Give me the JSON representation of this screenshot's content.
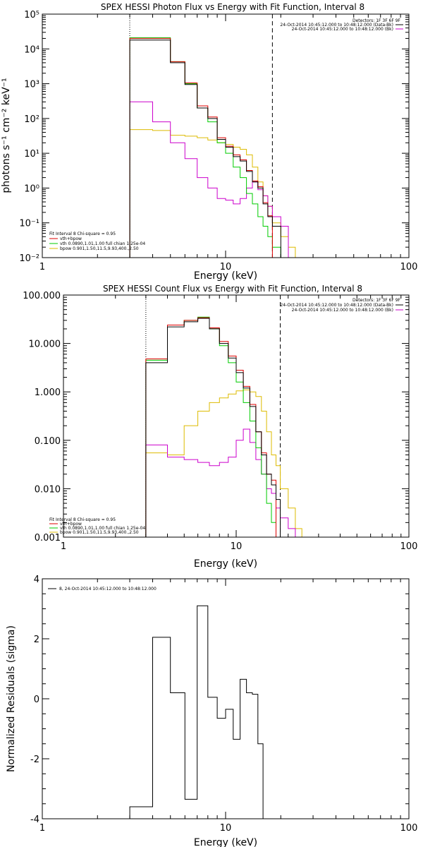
{
  "colors": {
    "data": "#000000",
    "total_fit": "#dd0000",
    "vth": "#00cc00",
    "bpow": "#ddbb00",
    "background": "#cc00cc"
  },
  "chart_data": [
    {
      "type": "line",
      "title": "SPEX HESSI Photon Flux vs Energy with Fit Function, Interval 8",
      "xlabel": "Energy (keV)",
      "ylabel": "photons s⁻¹ cm⁻² keV⁻¹",
      "xscale": "log",
      "yscale": "log",
      "xlim": [
        1,
        100
      ],
      "ylim": [
        0.01,
        100000
      ],
      "xticks": [
        1,
        10,
        100
      ],
      "xtick_labels": [
        "1",
        "10",
        "100"
      ],
      "yticks": [
        0.01,
        0.1,
        1,
        10,
        100,
        1000,
        10000,
        100000
      ],
      "ytick_labels": [
        "10⁻²",
        "10⁻¹",
        "10⁰",
        "10¹",
        "10²",
        "10³",
        "10⁴",
        "10⁵"
      ],
      "vlines": [
        {
          "x": 3,
          "style": "dotted"
        },
        {
          "x": 18,
          "style": "dashed"
        }
      ],
      "legend_right": {
        "header": "Detectors: 1F 3F 6F 9F",
        "entries": [
          {
            "text": "24-Oct-2014 10:45:12.000 to 10:48:12.000 (Data-Bk)",
            "color": "#000000"
          },
          {
            "text": "24-Oct-2014 10:45:12.000 to 10:48:12.000 (Bk)",
            "color": "#cc00cc"
          }
        ]
      },
      "legend_left": {
        "header": "Fit Interval  8    Chi-square = 0.95",
        "entries": [
          {
            "text": "vth+bpow",
            "color": "#dd0000"
          },
          {
            "text": "vth 0.0890,1.01,1.00  full chian 1.25e-04",
            "color": "#00cc00"
          },
          {
            "text": "bpow 0.901,1.50,11.5,9.93,400.,2.50",
            "color": "#ddbb00"
          }
        ]
      },
      "edges": [
        3,
        4,
        5,
        6,
        7,
        8,
        9,
        10,
        11,
        12,
        13,
        14,
        15,
        16,
        17,
        18,
        20,
        22,
        24
      ],
      "series": [
        {
          "key": "data",
          "values": [
            18000,
            18000,
            4000,
            950,
            200,
            100,
            25,
            15,
            8,
            6,
            3,
            1.5,
            1.0,
            0.35,
            0.15,
            0.08
          ]
        },
        {
          "key": "total",
          "values": [
            20000,
            20000,
            4300,
            1050,
            230,
            110,
            28,
            16,
            9,
            6.5,
            3.2,
            1.6,
            1.1,
            0.38,
            0.16
          ]
        },
        {
          "key": "vth",
          "values": [
            21000,
            21000,
            4300,
            1000,
            200,
            80,
            20,
            10,
            4,
            2,
            0.7,
            0.35,
            0.15,
            0.08,
            0.04,
            0.02,
            0.01
          ]
        },
        {
          "key": "bpow",
          "values": [
            48,
            45,
            33,
            31,
            28,
            24,
            20,
            18,
            15,
            13,
            9,
            4,
            1.5,
            0.6,
            0.3,
            0.1,
            0.04,
            0.02
          ]
        },
        {
          "key": "background",
          "values": [
            300,
            80,
            20,
            7,
            2,
            1,
            0.5,
            0.45,
            0.35,
            0.5,
            1.0,
            1.5,
            0.9,
            0.6,
            0.3,
            0.15,
            0.08
          ]
        }
      ]
    },
    {
      "type": "line",
      "title": "SPEX HESSI Count Flux vs Energy with Fit Function, Interval 8",
      "xlabel": "Energy (keV)",
      "ylabel": "",
      "xscale": "log",
      "yscale": "log",
      "xlim": [
        1,
        100
      ],
      "ylim": [
        0.001,
        100
      ],
      "xticks": [
        1,
        10,
        100
      ],
      "xtick_labels": [
        "1",
        "10",
        "100"
      ],
      "yticks": [
        0.001,
        0.01,
        0.1,
        1,
        10,
        100
      ],
      "ytick_labels": [
        "0.001",
        "0.010",
        "0.100",
        "1.000",
        "10.000",
        "100.000"
      ],
      "vlines": [
        {
          "x": 3,
          "style": "dotted"
        },
        {
          "x": 18,
          "style": "dashed"
        }
      ],
      "legend_right": {
        "header": "Detectors: 1F 3F 6F 9F",
        "entries": [
          {
            "text": "24-Oct-2014 10:45:12.000 to 10:48:12.000 (Data-Bk)",
            "color": "#000000"
          },
          {
            "text": "24-Oct-2014 10:45:12.000 to 10:48:12.000 (Bk)",
            "color": "#cc00cc"
          }
        ]
      },
      "legend_left": {
        "header": "Fit Interval  8    Chi-square = 0.95",
        "entries": [
          {
            "text": "vth+bpow",
            "color": "#dd0000"
          },
          {
            "text": "vth 0.0890,1.01,1.00  full chian 1.25e-04",
            "color": "#00cc00"
          },
          {
            "text": "bpow 0.901,1.50,11.5,9.93,400.,2.50",
            "color": "#ddbb00"
          }
        ]
      },
      "edges": [
        3,
        4,
        5,
        6,
        7,
        8,
        9,
        10,
        11,
        12,
        13,
        14,
        15,
        16,
        17,
        18,
        20,
        22,
        24
      ],
      "series": [
        {
          "key": "data",
          "values": [
            4.0,
            22,
            28,
            33,
            20,
            10,
            5,
            2.5,
            1.2,
            0.5,
            0.15,
            0.05,
            0.02,
            0.012,
            0.006
          ]
        },
        {
          "key": "total",
          "values": [
            4.8,
            24,
            30,
            34,
            21,
            11,
            5.5,
            2.8,
            1.3,
            0.55,
            0.15,
            0.055,
            0.02,
            0.015
          ]
        },
        {
          "key": "vth",
          "values": [
            4.5,
            24,
            30,
            35,
            20,
            9,
            4,
            1.6,
            0.6,
            0.25,
            0.07,
            0.02,
            0.005,
            0.002,
            0.001
          ]
        },
        {
          "key": "bpow",
          "values": [
            0.055,
            0.05,
            0.2,
            0.4,
            0.6,
            0.75,
            0.9,
            1.05,
            1.1,
            1.0,
            0.8,
            0.4,
            0.15,
            0.05,
            0.03,
            0.01,
            0.004,
            0.0015
          ]
        },
        {
          "key": "background",
          "values": [
            0.08,
            0.045,
            0.04,
            0.035,
            0.03,
            0.035,
            0.045,
            0.1,
            0.17,
            0.09,
            0.04,
            0.02,
            0.01,
            0.008,
            0.004,
            0.0025,
            0.0015
          ]
        }
      ]
    },
    {
      "type": "line",
      "title": "",
      "xlabel": "Energy (keV)",
      "ylabel": "Normalized Residuals (sigma)",
      "xscale": "log",
      "yscale": "linear",
      "xlim": [
        1,
        100
      ],
      "ylim": [
        -4,
        4
      ],
      "xticks": [
        1,
        10,
        100
      ],
      "xtick_labels": [
        "1",
        "10",
        "100"
      ],
      "yticks": [
        -4,
        -2,
        0,
        2,
        4
      ],
      "ytick_labels": [
        "-4",
        "-2",
        "0",
        "2",
        "4"
      ],
      "legend": "8, 24-Oct-2014 10:45:12.000 to 10:48:12.000",
      "edges": [
        3,
        4,
        5,
        6,
        7,
        8,
        9,
        10,
        11,
        12,
        13,
        14,
        15,
        16,
        17,
        18
      ],
      "series": [
        {
          "key": "data",
          "values": [
            -3.6,
            2.05,
            0.2,
            -3.35,
            3.1,
            0.05,
            -0.65,
            -0.35,
            -1.35,
            0.65,
            0.2,
            0.15,
            -1.5,
            -4.0,
            -4.0
          ]
        }
      ]
    }
  ]
}
